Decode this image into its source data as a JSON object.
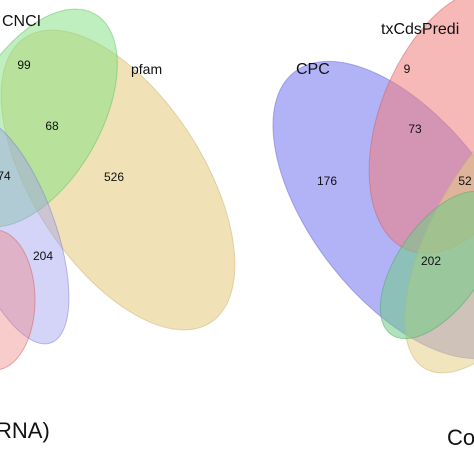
{
  "left_panel": {
    "sets": [
      {
        "name": "CNCI",
        "color": "#86e08a"
      },
      {
        "name": "pfam",
        "color": "#e6d08a"
      },
      {
        "name": "",
        "color": "#a3a3ee"
      }
    ],
    "region_counts": [
      "99",
      "68",
      "526",
      "74",
      "204"
    ],
    "caption": "RNA)"
  },
  "right_panel": {
    "sets": [
      {
        "name": "txCdsPredi",
        "color": "#f28282"
      },
      {
        "name": "CPC",
        "color": "#8a8af2"
      },
      {
        "name": "",
        "color": "#e6d08a"
      },
      {
        "name": "",
        "color": "#86e08a"
      }
    ],
    "region_counts": [
      "9",
      "73",
      "176",
      "52",
      "202"
    ],
    "caption": "Co"
  }
}
